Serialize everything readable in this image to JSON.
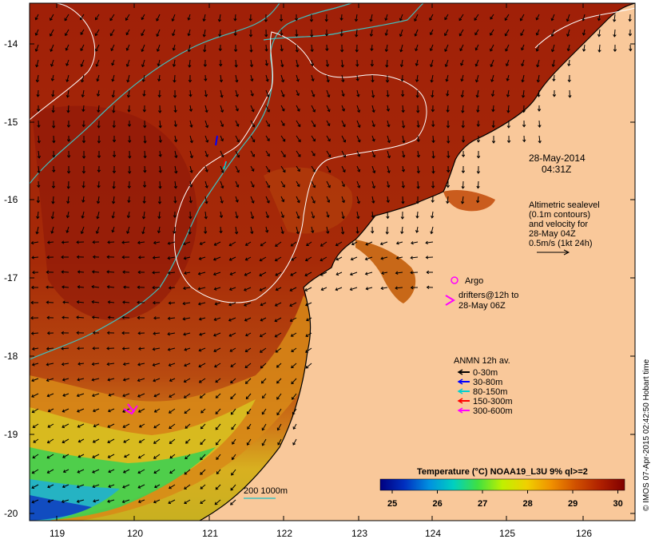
{
  "map": {
    "lat_labels": [
      "-14",
      "-15",
      "-16",
      "-17",
      "-18",
      "-19",
      "-20"
    ],
    "lon_labels": [
      "119",
      "120",
      "121",
      "122",
      "123",
      "124",
      "125",
      "126"
    ],
    "timestamp": {
      "date": "28-May-2014",
      "time": "04:31Z"
    },
    "altimetry_note": [
      "Altimetric sealevel",
      "(0.1m contours)",
      "and velocity for",
      "28-May 04Z",
      "0.5m/s (1kt 24h)"
    ],
    "argo_label": "Argo",
    "drifters_label": [
      "drifters@12h to",
      "28-May 06Z"
    ],
    "anmn": {
      "title": "ANMN 12h av.",
      "items": [
        {
          "label": "0-30m",
          "color": "#000000"
        },
        {
          "label": "30-80m",
          "color": "#0000ff"
        },
        {
          "label": "80-150m",
          "color": "#00d0d0"
        },
        {
          "label": "150-300m",
          "color": "#ff0000"
        },
        {
          "label": "300-600m",
          "color": "#ff00ff"
        }
      ]
    },
    "bathymetry_label": "200  1000m",
    "colorbar": {
      "title": "Temperature (°C) NOAA19_L3U 9% ql>=2",
      "ticks": [
        "25",
        "26",
        "27",
        "28",
        "29",
        "30"
      ]
    },
    "credit": "© IMOS 07-Apr-2015 02:42:50 Hobart time",
    "colors": {
      "land": "#f9c89a",
      "warm_sea": "#a52a0a",
      "contour_white": "#ffffff",
      "contour_cyan": "#40c0c0",
      "argo": "#ff00ff"
    }
  }
}
